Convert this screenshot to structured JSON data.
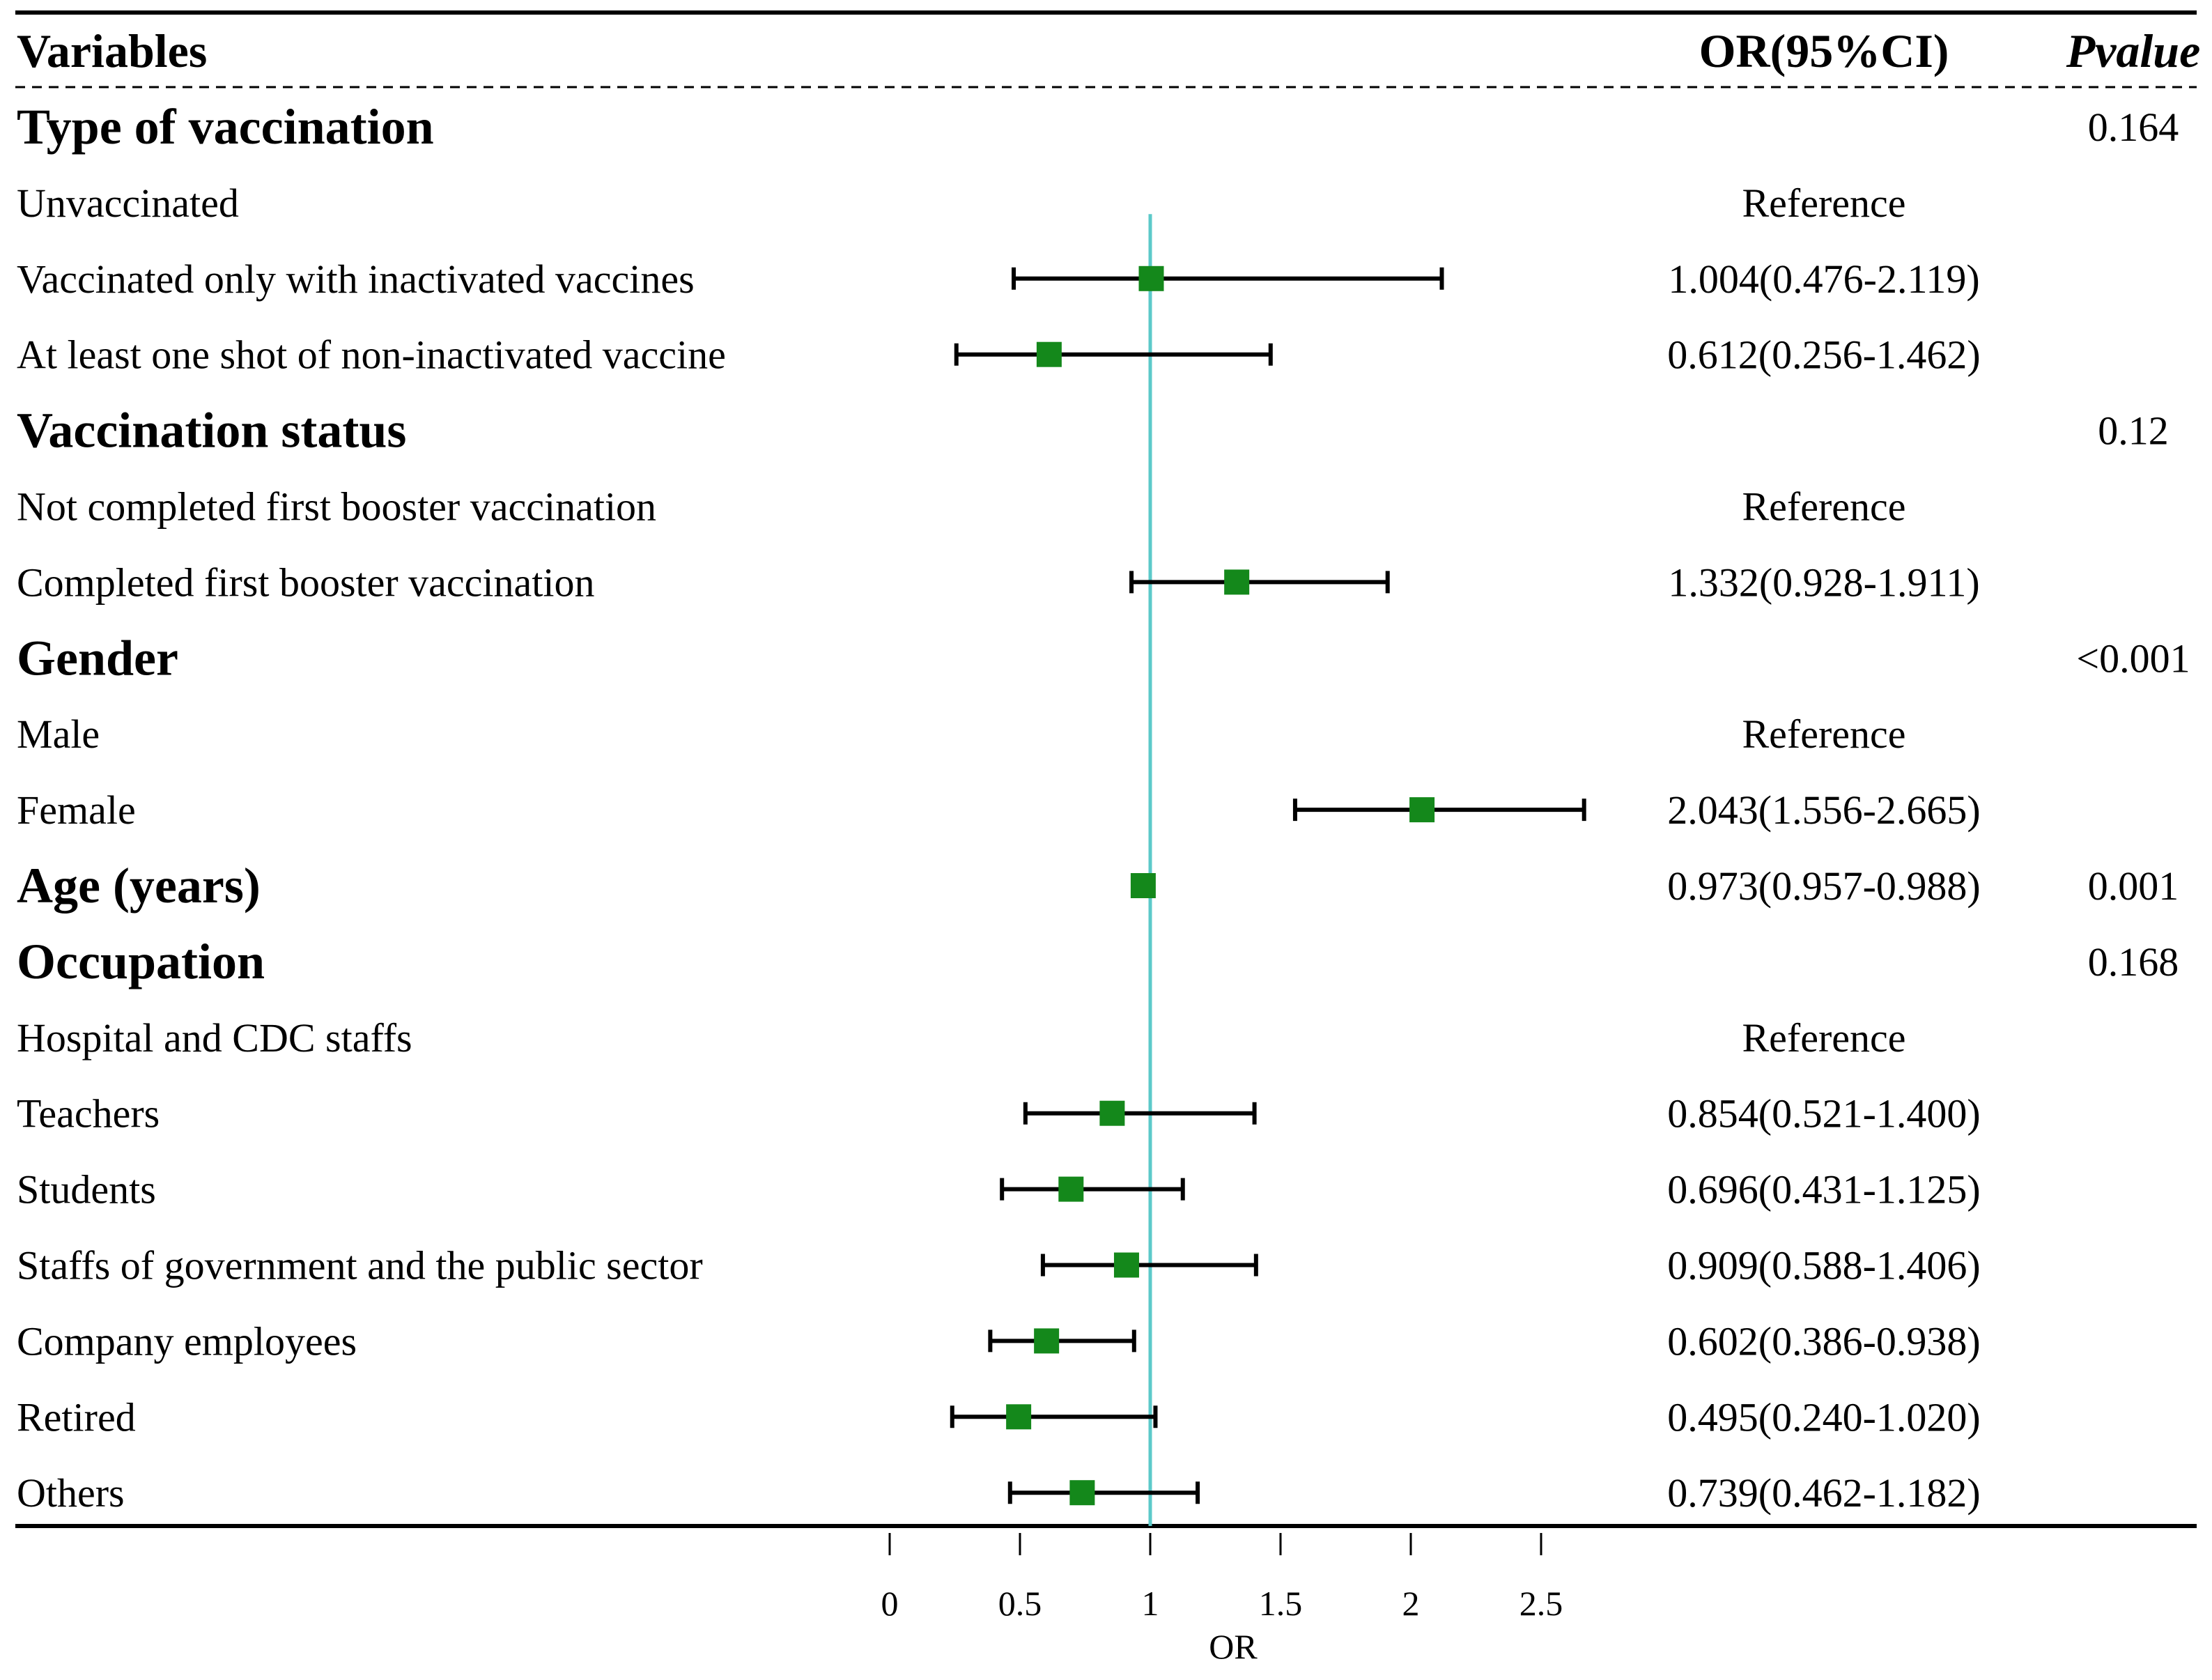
{
  "colors": {
    "marker": "#14881b",
    "reference_line": "#5cc9c9",
    "error_bar": "#000000",
    "text": "#000000"
  },
  "headers": {
    "variables": "Variables",
    "or_ci": "OR(95%CI)",
    "pvalue": "Pvalue"
  },
  "chart_data": {
    "type": "forest",
    "xlabel": "OR",
    "xlim": [
      0,
      2.7
    ],
    "xticks": [
      0,
      0.5,
      1,
      1.5,
      2,
      2.5
    ],
    "xtick_labels": [
      "0",
      "0.5",
      "1",
      "1.5",
      "2",
      "2.5"
    ],
    "reference_value": 1,
    "rows": [
      {
        "label": "Type of vaccination",
        "kind": "category",
        "pvalue": "0.164"
      },
      {
        "label": "Unvaccinated",
        "kind": "item",
        "or_text": "Reference"
      },
      {
        "label": "Vaccinated only with inactivated vaccines",
        "kind": "item",
        "or_text": "1.004(0.476-2.119)",
        "or": 1.004,
        "lo": 0.476,
        "hi": 2.119
      },
      {
        "label": "At least one shot of non-inactivated vaccine",
        "kind": "item",
        "or_text": "0.612(0.256-1.462)",
        "or": 0.612,
        "lo": 0.256,
        "hi": 1.462
      },
      {
        "label": "Vaccination status",
        "kind": "category",
        "pvalue": "0.12"
      },
      {
        "label": "Not completed first booster vaccination",
        "kind": "item",
        "or_text": "Reference"
      },
      {
        "label": "Completed first booster vaccination",
        "kind": "item",
        "or_text": "1.332(0.928-1.911)",
        "or": 1.332,
        "lo": 0.928,
        "hi": 1.911
      },
      {
        "label": "Gender",
        "kind": "category",
        "pvalue": "<0.001"
      },
      {
        "label": "Male",
        "kind": "item",
        "or_text": "Reference"
      },
      {
        "label": "Female",
        "kind": "item",
        "or_text": "2.043(1.556-2.665)",
        "or": 2.043,
        "lo": 1.556,
        "hi": 2.665
      },
      {
        "label": "Age (years)",
        "kind": "category",
        "or_text": "0.973(0.957-0.988)",
        "or": 0.973,
        "lo": 0.957,
        "hi": 0.988,
        "pvalue": "0.001"
      },
      {
        "label": "Occupation",
        "kind": "category",
        "pvalue": "0.168"
      },
      {
        "label": "Hospital and CDC staffs",
        "kind": "item",
        "or_text": "Reference"
      },
      {
        "label": "Teachers",
        "kind": "item",
        "or_text": "0.854(0.521-1.400)",
        "or": 0.854,
        "lo": 0.521,
        "hi": 1.4
      },
      {
        "label": "Students",
        "kind": "item",
        "or_text": "0.696(0.431-1.125)",
        "or": 0.696,
        "lo": 0.431,
        "hi": 1.125
      },
      {
        "label": "Staffs of government and the public sector",
        "kind": "item",
        "or_text": "0.909(0.588-1.406)",
        "or": 0.909,
        "lo": 0.588,
        "hi": 1.406
      },
      {
        "label": "Company employees",
        "kind": "item",
        "or_text": "0.602(0.386-0.938)",
        "or": 0.602,
        "lo": 0.386,
        "hi": 0.938
      },
      {
        "label": "Retired",
        "kind": "item",
        "or_text": "0.495(0.240-1.020)",
        "or": 0.495,
        "lo": 0.24,
        "hi": 1.02
      },
      {
        "label": "Others",
        "kind": "item",
        "or_text": "0.739(0.462-1.182)",
        "or": 0.739,
        "lo": 0.462,
        "hi": 1.182
      }
    ]
  }
}
